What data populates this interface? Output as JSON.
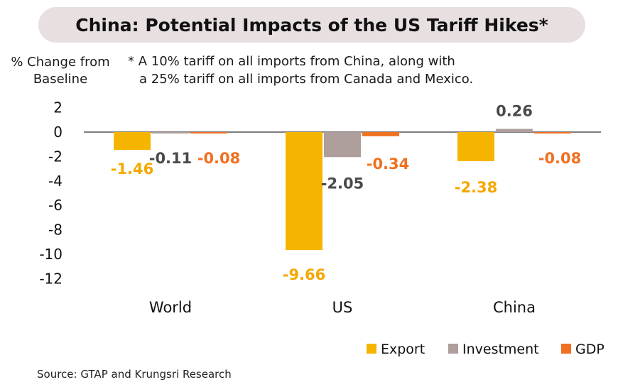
{
  "chart_data": {
    "type": "bar",
    "title": "China: Potential Impacts of the US Tariff Hikes*",
    "ylabel": "% Change from Baseline",
    "note_line1": "* A 10% tariff on all imports from China, along with",
    "note_line2": "a 25% tariff on all imports from Canada and Mexico.",
    "source": "Source: GTAP and Krungsri Research",
    "categories": [
      "World",
      "US",
      "China"
    ],
    "series": [
      {
        "name": "Export",
        "color": "#f5b400",
        "label_color": "#f5a800",
        "values": [
          -1.46,
          -9.66,
          -2.38
        ]
      },
      {
        "name": "Investment",
        "color": "#ae9e9c",
        "label_color": "#4a4a4a",
        "values": [
          -0.11,
          -2.05,
          0.26
        ]
      },
      {
        "name": "GDP",
        "color": "#f07020",
        "label_color": "#f07020",
        "values": [
          -0.08,
          -0.34,
          -0.08
        ]
      }
    ],
    "ylim": [
      -12,
      2
    ],
    "yticks": [
      2,
      0,
      -2,
      -4,
      -6,
      -8,
      -10,
      -12
    ],
    "legend_position": "bottom-right",
    "grid": false
  }
}
